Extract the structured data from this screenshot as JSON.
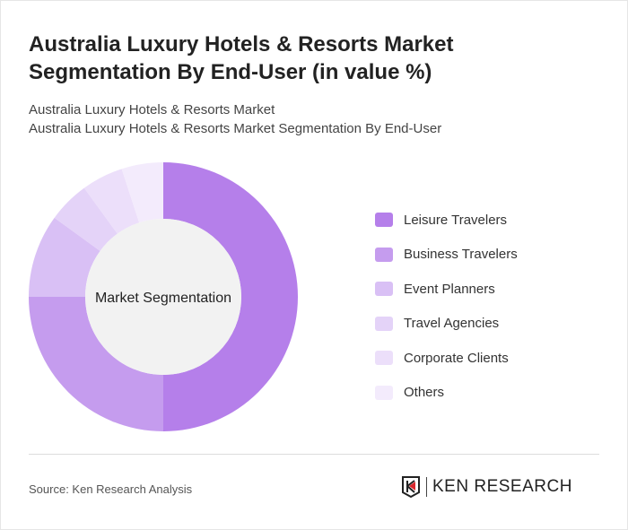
{
  "title": "Australia Luxury Hotels & Resorts Market Segmentation By End-User (in value %)",
  "subtitle1": "Australia Luxury Hotels & Resorts Market",
  "subtitle2": "Australia Luxury Hotels & Resorts Market Segmentation By End-User",
  "source": "Source: Ken Research Analysis",
  "logo": "KEN RESEARCH",
  "chart_data": {
    "type": "pie",
    "donut": true,
    "center_label": "Market Segmentation",
    "categories": [
      "Leisure Travelers",
      "Business Travelers",
      "Event Planners",
      "Travel Agencies",
      "Corporate Clients",
      "Others"
    ],
    "values": [
      50,
      25,
      10,
      5,
      5,
      5
    ],
    "colors": [
      "#b57fea",
      "#c59cee",
      "#d9c0f5",
      "#e4d3f8",
      "#ecdffa",
      "#f3ebfc"
    ],
    "legend": "right"
  }
}
